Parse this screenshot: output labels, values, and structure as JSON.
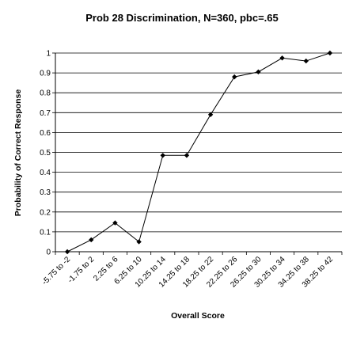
{
  "chart_data": {
    "type": "line",
    "title": "Prob 28 Discrimination, N=360, pbc=.65",
    "xlabel": "Overall Score",
    "ylabel": "Probability of Correct Response",
    "categories": [
      "-5.75 to -2",
      "-1.75 to 2",
      "2.25 to 6",
      "6.25 to 10",
      "10.25 to 14",
      "14.25 to 18",
      "18.25 to 22",
      "22.25 to 26",
      "26.25 to 30",
      "30.25 to 34",
      "34.25 to 38",
      "38.25 to 42"
    ],
    "series": [
      {
        "values": [
          0.0,
          0.06,
          0.145,
          0.05,
          0.485,
          0.485,
          0.69,
          0.88,
          0.905,
          0.975,
          0.96,
          1.0
        ]
      }
    ],
    "ylim": [
      0,
      1
    ],
    "yticks": [
      0,
      0.1,
      0.2,
      0.3,
      0.4,
      0.5,
      0.6,
      0.7,
      0.8,
      0.9,
      1
    ],
    "grid": "horizontal",
    "legend": "none",
    "marker": "diamond",
    "line_color": "#000000"
  }
}
